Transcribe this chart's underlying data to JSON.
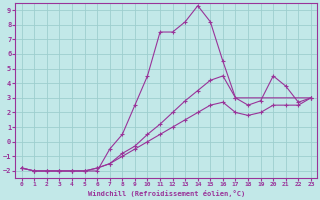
{
  "xlabel": "Windchill (Refroidissement éolien,°C)",
  "xlim": [
    -0.5,
    23.5
  ],
  "ylim": [
    -2.5,
    9.5
  ],
  "background_color": "#c2e8e8",
  "grid_color": "#9ecece",
  "line_color": "#993399",
  "series": [
    {
      "x": [
        0,
        1,
        2,
        3,
        4,
        5,
        6,
        7,
        8,
        9,
        10,
        11,
        12,
        13,
        14,
        15,
        16,
        17,
        23
      ],
      "y": [
        -1.8,
        -2.0,
        -2.0,
        -2.0,
        -2.0,
        -2.0,
        -2.0,
        -0.5,
        0.5,
        2.5,
        4.5,
        7.5,
        7.5,
        8.2,
        9.3,
        8.2,
        5.5,
        3.0,
        3.0
      ]
    },
    {
      "x": [
        0,
        1,
        2,
        3,
        4,
        5,
        6,
        7,
        8,
        9,
        10,
        11,
        12,
        13,
        14,
        15,
        16,
        17,
        18,
        19,
        20,
        21,
        22,
        23
      ],
      "y": [
        -1.8,
        -2.0,
        -2.0,
        -2.0,
        -2.0,
        -2.0,
        -1.8,
        -1.5,
        -0.8,
        -0.3,
        0.5,
        1.2,
        2.0,
        2.8,
        3.5,
        4.2,
        4.5,
        3.0,
        2.5,
        2.8,
        4.5,
        3.8,
        2.7,
        3.0
      ]
    },
    {
      "x": [
        0,
        1,
        2,
        3,
        4,
        5,
        6,
        7,
        8,
        9,
        10,
        11,
        12,
        13,
        14,
        15,
        16,
        17,
        18,
        19,
        20,
        21,
        22,
        23
      ],
      "y": [
        -1.8,
        -2.0,
        -2.0,
        -2.0,
        -2.0,
        -2.0,
        -1.8,
        -1.5,
        -1.0,
        -0.5,
        0.0,
        0.5,
        1.0,
        1.5,
        2.0,
        2.5,
        2.7,
        2.0,
        1.8,
        2.0,
        2.5,
        2.5,
        2.5,
        3.0
      ]
    }
  ],
  "xticks": [
    0,
    1,
    2,
    3,
    4,
    5,
    6,
    7,
    8,
    9,
    10,
    11,
    12,
    13,
    14,
    15,
    16,
    17,
    18,
    19,
    20,
    21,
    22,
    23
  ],
  "yticks": [
    -2,
    -1,
    0,
    1,
    2,
    3,
    4,
    5,
    6,
    7,
    8,
    9
  ]
}
